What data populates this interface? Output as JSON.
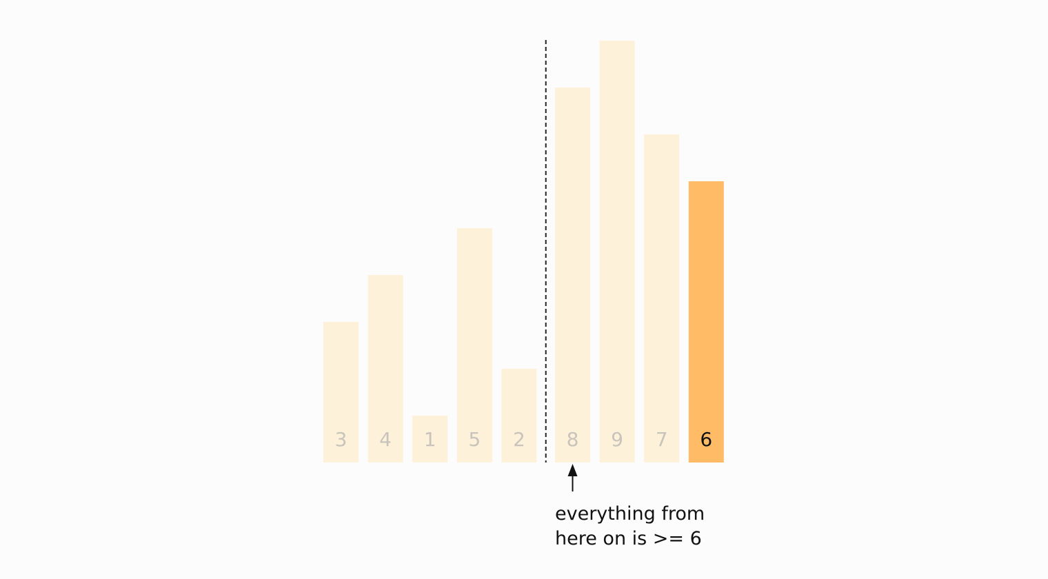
{
  "chart_data": {
    "type": "bar",
    "title": "",
    "xlabel": "",
    "ylabel": "",
    "ylim": [
      0,
      9
    ],
    "grid": false,
    "categories": [
      "3",
      "4",
      "1",
      "5",
      "2",
      "8",
      "9",
      "7",
      "6"
    ],
    "values": [
      3,
      4,
      1,
      5,
      2,
      8,
      9,
      7,
      6
    ],
    "highlight_index": 8,
    "divider_after_index": 4,
    "annotation": {
      "line1": "everything from",
      "line2": "here on is >= 6",
      "target_index": 5
    }
  },
  "colors": {
    "background": "#fcfcfc",
    "bar_faded": "#fdf1da",
    "bar_highlight": "#ffbb66",
    "label_faded": "#c9c4bb",
    "label_highlight": "#111111",
    "divider": "#222222",
    "arrow": "#111111"
  }
}
